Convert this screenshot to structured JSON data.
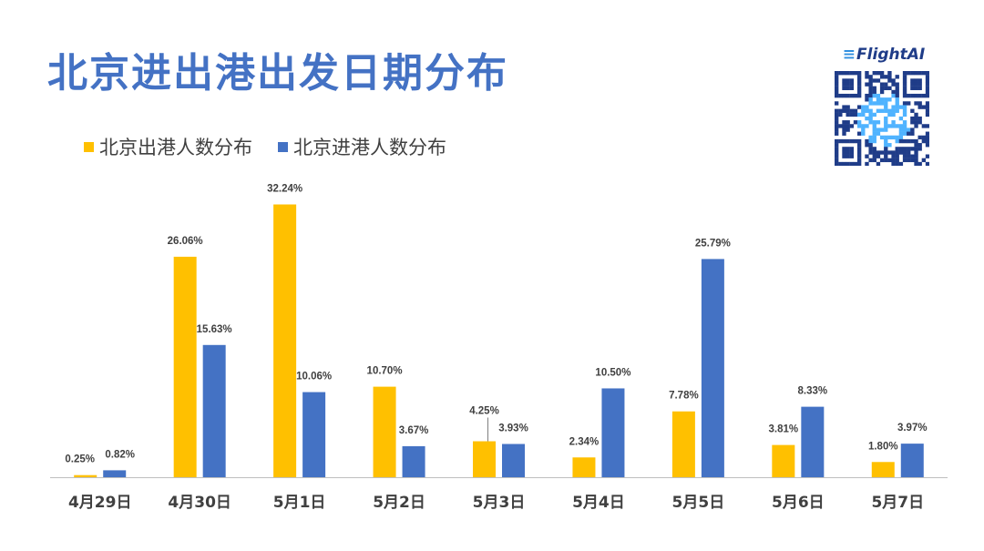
{
  "title": "北京进出港出发日期分布",
  "logo": {
    "text": "FlightAI"
  },
  "colors": {
    "outbound": "#ffc000",
    "inbound": "#4472c4",
    "title": "#4472c4"
  },
  "chart_data": {
    "type": "bar",
    "categories": [
      "4月29日",
      "4月30日",
      "5月1日",
      "5月2日",
      "5月3日",
      "5月4日",
      "5月5日",
      "5月6日",
      "5月7日"
    ],
    "series": [
      {
        "name": "北京出港人数分布",
        "color": "#ffc000",
        "values": [
          0.25,
          26.06,
          32.24,
          10.7,
          4.25,
          2.34,
          7.78,
          3.81,
          1.8
        ],
        "labels": [
          "0.25%",
          "26.06%",
          "32.24%",
          "10.70%",
          "4.25%",
          "2.34%",
          "7.78%",
          "3.81%",
          "1.80%"
        ]
      },
      {
        "name": "北京进港人数分布",
        "color": "#4472c4",
        "values": [
          0.82,
          15.63,
          10.06,
          3.67,
          3.93,
          10.5,
          25.79,
          8.33,
          3.97
        ],
        "labels": [
          "0.82%",
          "15.63%",
          "10.06%",
          "3.67%",
          "3.93%",
          "10.50%",
          "25.79%",
          "8.33%",
          "3.97%"
        ]
      }
    ],
    "unit": "%",
    "ylim": [
      0,
      34
    ],
    "grid": false,
    "legend_position": "top-left"
  }
}
